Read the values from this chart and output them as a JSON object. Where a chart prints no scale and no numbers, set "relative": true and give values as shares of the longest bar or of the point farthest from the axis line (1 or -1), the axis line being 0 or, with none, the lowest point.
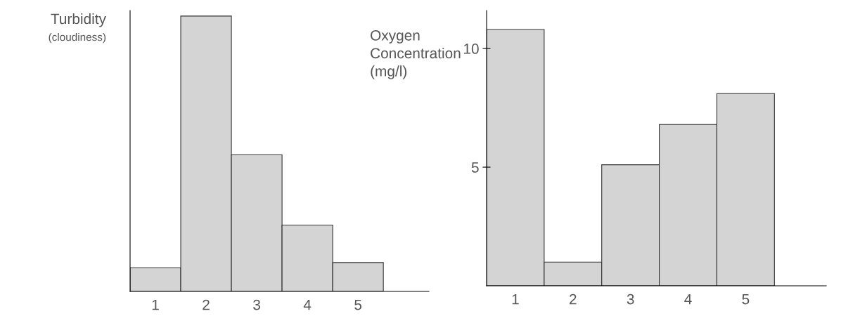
{
  "chart_data": [
    {
      "type": "bar",
      "ylabel": "Turbidity",
      "annotations": [
        "(cloudiness)"
      ],
      "categories": [
        "1",
        "2",
        "3",
        "4",
        "5"
      ],
      "values": [
        0.086,
        1,
        0.496,
        0.241,
        0.105
      ],
      "relative": true,
      "color": "#d4d4d4"
    },
    {
      "type": "bar",
      "ylabel": "Oxygen\nConcentration\n(mg/l)",
      "categories": [
        "1",
        "2",
        "3",
        "4",
        "5"
      ],
      "values": [
        10.8,
        1.0,
        5.1,
        6.8,
        8.1
      ],
      "color": "#d4d4d4",
      "ylim": [
        0,
        11.6
      ],
      "yticks": [
        5,
        10
      ]
    }
  ]
}
